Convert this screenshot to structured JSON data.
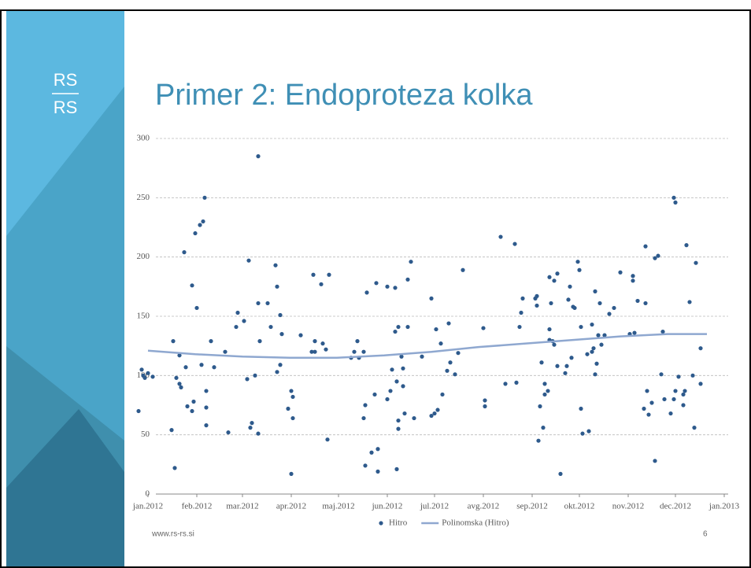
{
  "slide": {
    "logo_top": "RS",
    "logo_bottom": "RS",
    "footer": "www.rs-rs.si",
    "page_number": "6"
  },
  "chart_data": {
    "type": "scatter",
    "title": "Primer 2: Endoproteza kolka",
    "xlim": [
      -12,
      372
    ],
    "ylim": [
      0,
      300
    ],
    "yticks": [
      0,
      50,
      100,
      150,
      200,
      250,
      300
    ],
    "xticks": [
      {
        "value": 0,
        "label": "jan.2012"
      },
      {
        "value": 31,
        "label": "feb.2012"
      },
      {
        "value": 60,
        "label": "mar.2012"
      },
      {
        "value": 91,
        "label": "apr.2012"
      },
      {
        "value": 121,
        "label": "maj.2012"
      },
      {
        "value": 152,
        "label": "jun.2012"
      },
      {
        "value": 182,
        "label": "jul.2012"
      },
      {
        "value": 213,
        "label": "avg.2012"
      },
      {
        "value": 244,
        "label": "sep.2012"
      },
      {
        "value": 274,
        "label": "okt.2012"
      },
      {
        "value": 305,
        "label": "nov.2012"
      },
      {
        "value": 335,
        "label": "dec.2012"
      },
      {
        "value": 366,
        "label": "jan.2013"
      }
    ],
    "grid": true,
    "legend": "bottom",
    "series": [
      {
        "name": "Hitro",
        "color": "#2e5a8c",
        "type": "scatter",
        "x": [
          -6,
          -4,
          -3,
          -2,
          0,
          3,
          16,
          15,
          17,
          18,
          20,
          20,
          21,
          23,
          24,
          25,
          28,
          28,
          29,
          30,
          31,
          33,
          34,
          35,
          36,
          37,
          37,
          37,
          40,
          42,
          49,
          51,
          56,
          57,
          61,
          63,
          64,
          65,
          66,
          68,
          70,
          70,
          70,
          71,
          76,
          78,
          81,
          82,
          82,
          84,
          84,
          85,
          89,
          91,
          92,
          92,
          91,
          97,
          104,
          105,
          106,
          106,
          110,
          111,
          113,
          114,
          115,
          129,
          131,
          133,
          134,
          137,
          137,
          138,
          138,
          139,
          142,
          144,
          145,
          146,
          146,
          152,
          152,
          154,
          155,
          157,
          157,
          158,
          158,
          159,
          159,
          159,
          161,
          162,
          162,
          163,
          165,
          165,
          167,
          169,
          174,
          180,
          180,
          182,
          183,
          184,
          186,
          187,
          190,
          191,
          192,
          195,
          197,
          200,
          213,
          214,
          214,
          224,
          227,
          233,
          234,
          236,
          237,
          238,
          246,
          247,
          247,
          248,
          249,
          250,
          251,
          252,
          252,
          254,
          255,
          255,
          255,
          256,
          257,
          258,
          258,
          260,
          260,
          262,
          265,
          266,
          267,
          268,
          269,
          270,
          271,
          273,
          274,
          275,
          275,
          276,
          279,
          280,
          282,
          282,
          283,
          284,
          284,
          285,
          286,
          287,
          288,
          290,
          293,
          296,
          300,
          306,
          308,
          308,
          309,
          311,
          315,
          316,
          316,
          317,
          318,
          320,
          322,
          322,
          324,
          326,
          327,
          328,
          332,
          334,
          334,
          335,
          335,
          337,
          340,
          340,
          341,
          342,
          344,
          346,
          347,
          348,
          351,
          351
        ],
        "values": [
          70,
          105,
          100,
          98,
          102,
          99,
          129,
          54,
          22,
          98,
          117,
          93,
          90,
          204,
          107,
          74,
          176,
          70,
          78,
          220,
          157,
          227,
          109,
          230,
          250,
          87,
          73,
          58,
          129,
          107,
          120,
          52,
          141,
          153,
          146,
          97,
          197,
          56,
          60,
          100,
          285,
          161,
          51,
          129,
          161,
          141,
          193,
          103,
          175,
          151,
          109,
          135,
          72,
          87,
          82,
          64,
          17,
          134,
          120,
          185,
          120,
          129,
          177,
          127,
          122,
          46,
          185,
          115,
          120,
          129,
          115,
          120,
          64,
          75,
          24,
          170,
          35,
          84,
          178,
          38,
          19,
          175,
          80,
          87,
          105,
          174,
          137,
          95,
          21,
          62,
          141,
          55,
          116,
          106,
          91,
          68,
          181,
          141,
          196,
          64,
          116,
          165,
          66,
          68,
          139,
          71,
          127,
          84,
          104,
          144,
          111,
          101,
          119,
          189,
          140,
          79,
          74,
          217,
          93,
          211,
          94,
          141,
          153,
          165,
          165,
          167,
          159,
          45,
          74,
          111,
          56,
          93,
          84,
          87,
          183,
          130,
          139,
          161,
          129,
          180,
          126,
          186,
          108,
          17,
          102,
          108,
          164,
          175,
          115,
          158,
          157,
          196,
          189,
          141,
          72,
          51,
          118,
          53,
          120,
          143,
          123,
          171,
          101,
          110,
          134,
          161,
          126,
          134,
          152,
          157,
          187,
          135,
          180,
          184,
          136,
          163,
          72,
          161,
          209,
          87,
          67,
          77,
          28,
          199,
          201,
          101,
          137,
          80,
          68,
          80,
          250,
          246,
          87,
          99,
          84,
          75,
          87,
          210,
          162,
          100,
          56,
          195,
          123,
          93
        ]
      },
      {
        "name": "Polinomska (Hitro)",
        "color": "#8fa8d0",
        "type": "line",
        "x": [
          0,
          30,
          60,
          90,
          120,
          150,
          180,
          210,
          240,
          270,
          300,
          330,
          355
        ],
        "values": [
          121,
          118,
          116,
          115,
          115,
          117,
          120,
          124,
          127,
          130,
          133,
          135,
          135
        ]
      }
    ]
  }
}
